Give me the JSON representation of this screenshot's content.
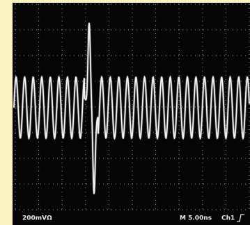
{
  "scope": {
    "channel_scale": "200mVΩ",
    "timebase": "M 5.00ns",
    "trigger_source": "Ch1"
  }
}
